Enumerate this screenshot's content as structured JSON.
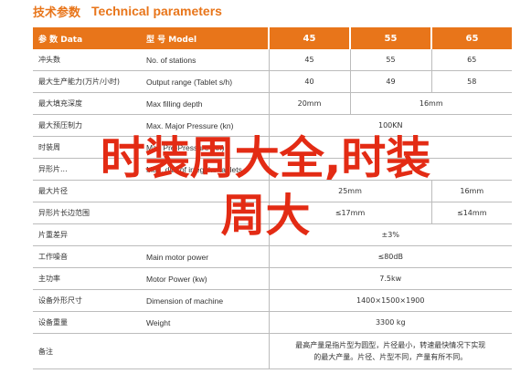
{
  "title": {
    "zh": "技术参数",
    "en": "Technical parameters"
  },
  "header": {
    "data_label": "参 数 Data",
    "model_label": "型 号 Model",
    "models": [
      "45",
      "55",
      "65"
    ]
  },
  "rows": [
    {
      "zh": "冲头数",
      "en": "No. of stations",
      "values": [
        "45",
        "55",
        "65"
      ]
    },
    {
      "zh": "最大生产能力(万片/小时)",
      "en": "Output range (Tablet s/h)",
      "values": [
        "40",
        "49",
        "58"
      ]
    },
    {
      "zh": "最大填充深度",
      "en": "Max filling depth",
      "values": [
        "20mm",
        "16mm"
      ]
    },
    {
      "zh": "最大预压制力",
      "en": "Max. Major Pressure (kn)",
      "values": [
        "100KN"
      ]
    },
    {
      "zh": "时装周",
      "en": "Max Pre-Pressure (kn)",
      "values": [
        ""
      ]
    },
    {
      "zh": "异形片...",
      "en": "Max. dia. of irregular tablets",
      "values": [
        ""
      ]
    },
    {
      "zh": "最大片径",
      "en": "",
      "values": [
        "25mm",
        "16mm"
      ]
    },
    {
      "zh": "异形片长边范围",
      "en": "",
      "values": [
        "≤17mm",
        "≤14mm"
      ]
    },
    {
      "zh": "片重差异",
      "en": "",
      "values": [
        "±3%"
      ]
    },
    {
      "zh": "工作噪音",
      "en": "Main motor power",
      "values": [
        "≤80dB"
      ]
    },
    {
      "zh": "主功率",
      "en": "Motor Power (kw)",
      "values": [
        "7.5kw"
      ]
    },
    {
      "zh": "设备外形尺寸",
      "en": "Dimension of machine",
      "values": [
        "1400×1500×1900"
      ]
    },
    {
      "zh": "设备重量",
      "en": "Weight",
      "values": [
        "3300 kg"
      ]
    }
  ],
  "remark": {
    "zh": "备注",
    "line1": "最高产量是指片型为圆型，片径最小，转速最快情况下实现",
    "line2": "的最大产量。片径、片型不同，产量有所不同。"
  },
  "overlay": {
    "line1": "时装周大全,时装",
    "line2": "周大"
  }
}
